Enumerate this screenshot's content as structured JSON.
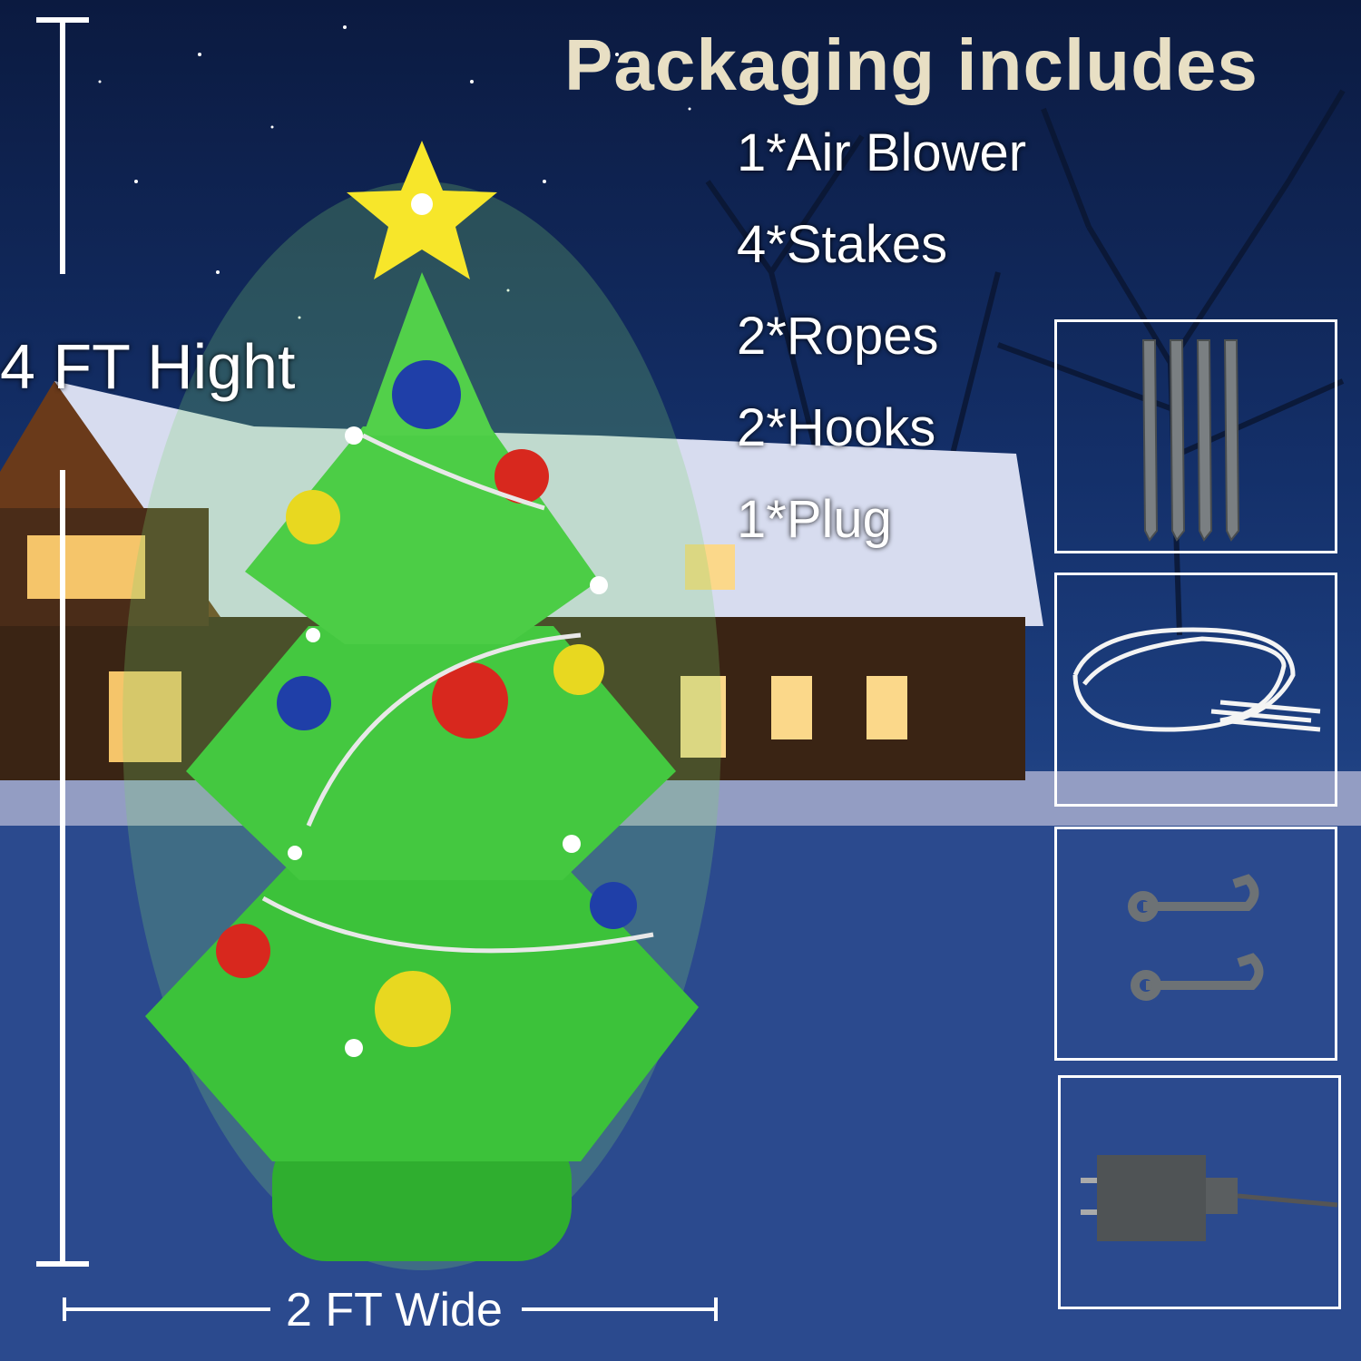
{
  "heading": "Packaging includes",
  "items": [
    "1*Air Blower",
    "4*Stakes",
    "2*Ropes",
    "2*Hooks",
    "1*Plug"
  ],
  "dimensions": {
    "height": "4 FT Hight",
    "width": "2 FT Wide"
  },
  "accessory_images": [
    "stakes-icon",
    "ropes-icon",
    "hooks-icon",
    "plug-icon"
  ],
  "colors": {
    "tree": "#3cc23a",
    "star": "#f7e62a",
    "sky": "#14306a",
    "heading": "#e8dfc4"
  }
}
